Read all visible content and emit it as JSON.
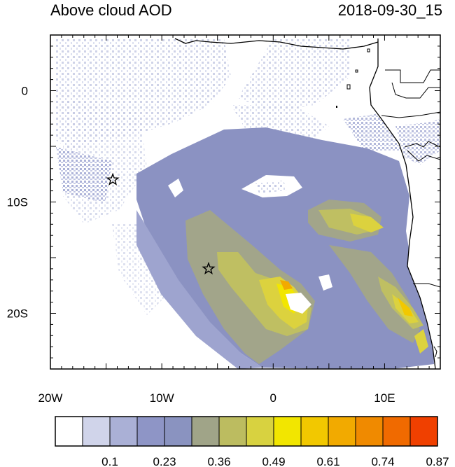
{
  "header": {
    "title": "Above cloud AOD",
    "timestamp": "2018-09-30_15"
  },
  "map": {
    "lon_range": [
      -20,
      15
    ],
    "lat_range": [
      -25,
      5
    ],
    "x_ticks": [
      {
        "lon": -20,
        "label": "20W"
      },
      {
        "lon": -10,
        "label": "10W"
      },
      {
        "lon": 0,
        "label": "0"
      },
      {
        "lon": 10,
        "label": "10E"
      }
    ],
    "y_ticks": [
      {
        "lat": 0,
        "label": "0"
      },
      {
        "lat": -10,
        "label": "10S"
      },
      {
        "lat": -20,
        "label": "20S"
      }
    ],
    "markers": [
      {
        "name": "station-star-1",
        "lon": -14.4,
        "lat": -8.0
      },
      {
        "name": "station-star-2",
        "lon": -5.8,
        "lat": -16.0
      }
    ]
  },
  "colorbar": {
    "colors": [
      "#ffffff",
      "#d0d4ea",
      "#aab0d6",
      "#8e95c6",
      "#8a93c0",
      "#a0a488",
      "#bcbc60",
      "#d8d240",
      "#f2e600",
      "#f2c800",
      "#f2aa00",
      "#f08a00",
      "#f06a00",
      "#f04000"
    ],
    "labels": [
      {
        "boundary": 2,
        "text": "0.1"
      },
      {
        "boundary": 4,
        "text": "0.23"
      },
      {
        "boundary": 6,
        "text": "0.36"
      },
      {
        "boundary": 8,
        "text": "0.49"
      },
      {
        "boundary": 10,
        "text": "0.61"
      },
      {
        "boundary": 12,
        "text": "0.74"
      },
      {
        "boundary": 14,
        "text": "0.87"
      }
    ]
  }
}
